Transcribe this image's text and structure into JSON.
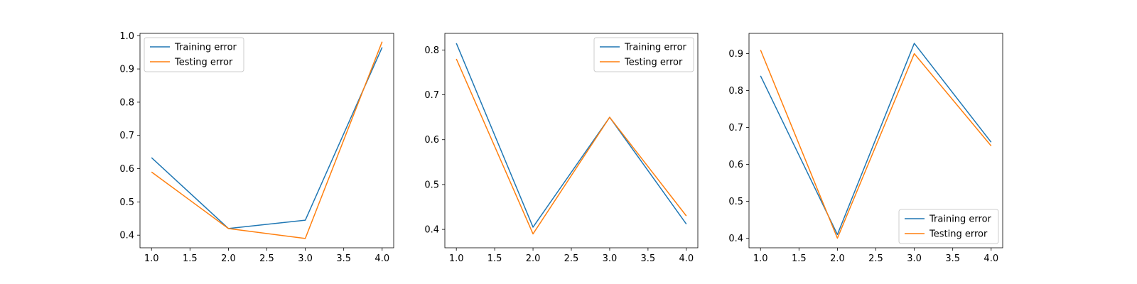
{
  "chart_data": [
    {
      "type": "line",
      "x": [
        1.0,
        2.0,
        3.0,
        4.0
      ],
      "xlim": [
        0.85,
        4.15
      ],
      "ylim": [
        0.362,
        1.007
      ],
      "xticks": [
        1.0,
        1.5,
        2.0,
        2.5,
        3.0,
        3.5,
        4.0
      ],
      "xtick_labels": [
        "1.0",
        "1.5",
        "2.0",
        "2.5",
        "3.0",
        "3.5",
        "4.0"
      ],
      "yticks": [
        0.4,
        0.5,
        0.6,
        0.7,
        0.8,
        0.9,
        1.0
      ],
      "ytick_labels": [
        "0.4",
        "0.5",
        "0.6",
        "0.7",
        "0.8",
        "0.9",
        "1.0"
      ],
      "legend_position": "upper-left",
      "grid": false,
      "series": [
        {
          "name": "Training error",
          "color": "#1f77b4",
          "values": [
            0.633,
            0.42,
            0.445,
            0.965
          ]
        },
        {
          "name": "Testing error",
          "color": "#ff7f0e",
          "values": [
            0.59,
            0.42,
            0.39,
            0.982
          ]
        }
      ]
    },
    {
      "type": "line",
      "x": [
        1.0,
        2.0,
        3.0,
        4.0
      ],
      "xlim": [
        0.85,
        4.15
      ],
      "ylim": [
        0.359,
        0.837
      ],
      "xticks": [
        1.0,
        1.5,
        2.0,
        2.5,
        3.0,
        3.5,
        4.0
      ],
      "xtick_labels": [
        "1.0",
        "1.5",
        "2.0",
        "2.5",
        "3.0",
        "3.5",
        "4.0"
      ],
      "yticks": [
        0.4,
        0.5,
        0.6,
        0.7,
        0.8
      ],
      "ytick_labels": [
        "0.4",
        "0.5",
        "0.6",
        "0.7",
        "0.8"
      ],
      "legend_position": "upper-right",
      "grid": false,
      "series": [
        {
          "name": "Training error",
          "color": "#1f77b4",
          "values": [
            0.815,
            0.405,
            0.65,
            0.412
          ]
        },
        {
          "name": "Testing error",
          "color": "#ff7f0e",
          "values": [
            0.78,
            0.39,
            0.65,
            0.43
          ]
        }
      ]
    },
    {
      "type": "line",
      "x": [
        1.0,
        2.0,
        3.0,
        4.0
      ],
      "xlim": [
        0.85,
        4.15
      ],
      "ylim": [
        0.374,
        0.955
      ],
      "xticks": [
        1.0,
        1.5,
        2.0,
        2.5,
        3.0,
        3.5,
        4.0
      ],
      "xtick_labels": [
        "1.0",
        "1.5",
        "2.0",
        "2.5",
        "3.0",
        "3.5",
        "4.0"
      ],
      "yticks": [
        0.4,
        0.5,
        0.6,
        0.7,
        0.8,
        0.9
      ],
      "ytick_labels": [
        "0.4",
        "0.5",
        "0.6",
        "0.7",
        "0.8",
        "0.9"
      ],
      "legend_position": "lower-right",
      "grid": false,
      "series": [
        {
          "name": "Training error",
          "color": "#1f77b4",
          "values": [
            0.84,
            0.41,
            0.928,
            0.66
          ]
        },
        {
          "name": "Testing error",
          "color": "#ff7f0e",
          "values": [
            0.91,
            0.4,
            0.9,
            0.65
          ]
        }
      ]
    }
  ]
}
